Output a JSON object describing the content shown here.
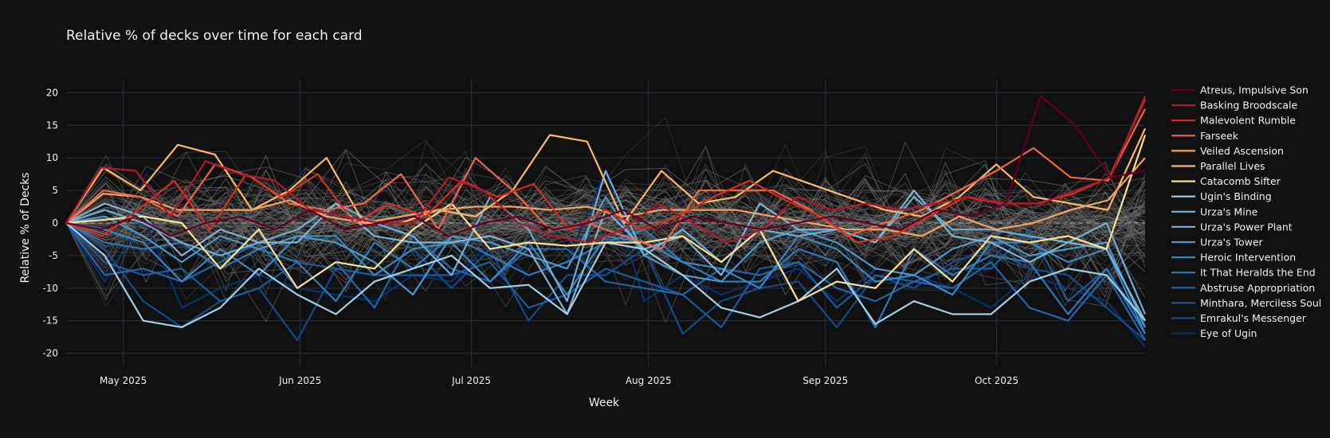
{
  "chart_data": {
    "type": "line",
    "title": "Relative  % of decks over time for each card",
    "xlabel": "Week",
    "ylabel": "Relative % of Decks",
    "ylim": [
      -22,
      22
    ],
    "grid": true,
    "legend": "right",
    "x_start": "2025-04-21",
    "x_step_days": 7,
    "x_ticks": [
      {
        "label": "May 2025",
        "day": 10
      },
      {
        "label": "Jun 2025",
        "day": 41
      },
      {
        "label": "Jul 2025",
        "day": 71
      },
      {
        "label": "Aug 2025",
        "day": 102
      },
      {
        "label": "Sep 2025",
        "day": 133
      },
      {
        "label": "Oct 2025",
        "day": 163
      }
    ],
    "y_ticks": [
      20,
      15,
      10,
      5,
      0,
      -5,
      -10,
      -15,
      -20
    ],
    "background_series_note": "many unlabeled grey cards",
    "background_seed": 7,
    "background_count": 90,
    "series": [
      {
        "name": "Atreus, Impulsive Son",
        "color": "#67001f",
        "values": [
          0,
          -1,
          1,
          -2,
          0,
          1,
          -1,
          2,
          -1,
          0,
          1,
          -2,
          0,
          1,
          -1,
          0,
          2,
          -1,
          1,
          0,
          -1,
          0,
          1,
          0,
          -1,
          2,
          1,
          3,
          19.5,
          15,
          7,
          8
        ]
      },
      {
        "name": "Basking Broodscale",
        "color": "#b2182b",
        "values": [
          0,
          8.5,
          8,
          1,
          9.5,
          7.5,
          6.5,
          2,
          1,
          0,
          0,
          7,
          5,
          0,
          -2,
          -3,
          -1,
          3,
          0,
          -3,
          -1,
          4,
          2,
          3,
          2,
          3,
          4,
          3,
          3,
          5,
          7,
          19.5
        ]
      },
      {
        "name": "Malevolent Rumble",
        "color": "#d6301d",
        "values": [
          0,
          -2,
          2,
          6.5,
          -1,
          7.5,
          4,
          7.5,
          0,
          3,
          1,
          6.5,
          4,
          6,
          -1,
          2,
          -1,
          1,
          4,
          6.5,
          3.5,
          1,
          -3,
          -2,
          1,
          4,
          3,
          3,
          4.5,
          7,
          19
        ]
      },
      {
        "name": "Farseek",
        "color": "#ef6548",
        "values": [
          0,
          5,
          4,
          1,
          9,
          7,
          3,
          2,
          3,
          7.5,
          -1,
          10,
          5,
          -1,
          0,
          -2,
          -4,
          5,
          5,
          5,
          2,
          -2,
          0,
          2,
          5,
          8,
          11.5,
          7,
          6.5,
          17.5
        ]
      },
      {
        "name": "Veiled Ascension",
        "color": "#f4a261",
        "values": [
          0,
          4.5,
          4,
          2,
          2,
          2,
          3.5,
          1,
          0,
          1,
          2,
          2.5,
          2.5,
          2,
          2.5,
          1,
          2,
          2,
          2,
          1,
          0,
          -1,
          -1,
          -2,
          1,
          -1,
          0,
          2,
          3.5,
          10
        ]
      },
      {
        "name": "Parallel Lives",
        "color": "#fdb863",
        "values": [
          0,
          8.5,
          5,
          12,
          10.5,
          2,
          5,
          10,
          0,
          0,
          2,
          1,
          5,
          13.5,
          12.5,
          0,
          8,
          3,
          4,
          8,
          6,
          4,
          2,
          1,
          4,
          9,
          4,
          3,
          2,
          14.5
        ]
      },
      {
        "name": "Catacomb Sifter",
        "color": "#fee090",
        "values": [
          0,
          0.5,
          1,
          0,
          -7,
          -1,
          -10,
          -6,
          -7,
          -1,
          3,
          -4,
          -3,
          -3.5,
          -3,
          -3,
          -2,
          -6,
          -1,
          -12,
          -9,
          -10,
          -4,
          -9,
          -2,
          -3,
          -2,
          -4,
          13.5
        ]
      },
      {
        "name": "Ugin's Binding",
        "color": "#a6cee3",
        "values": [
          0,
          -5,
          -15,
          -16,
          -13,
          -7,
          -11,
          -14,
          -9,
          -7,
          -5,
          -10,
          -9.5,
          -14,
          -3,
          -4,
          -8,
          -13,
          -14.5,
          -12,
          -7,
          -15.5,
          -12,
          -14,
          -14,
          -9,
          -7,
          -8,
          -15
        ]
      },
      {
        "name": "Urza's Mine",
        "color": "#7fb3d8",
        "values": [
          0,
          3,
          1,
          -5,
          -1,
          -3,
          -3,
          3,
          -2,
          -3,
          -3,
          -2,
          -4,
          -14,
          2,
          -4,
          -2,
          -8,
          3,
          -1,
          -1,
          -3,
          5,
          -2,
          -3,
          -6,
          -3,
          -4,
          -15
        ]
      },
      {
        "name": "Urza's Power Plant",
        "color": "#6aaed6",
        "values": [
          0,
          2,
          0,
          -3,
          -5,
          -3,
          -1,
          3,
          0,
          -2,
          -8,
          4,
          -1,
          -12,
          8,
          -5,
          -1,
          -6,
          -1,
          -2,
          -1,
          -3,
          4,
          -1,
          -1,
          -2,
          -3,
          0,
          -14
        ]
      },
      {
        "name": "Urza's Tower",
        "color": "#4a98c9",
        "values": [
          0,
          1,
          -2,
          -6,
          -2,
          -4,
          -2,
          -3,
          -6,
          -11,
          -2,
          -3,
          -5,
          -7,
          4,
          -5,
          -8,
          -9,
          -3,
          -1,
          -3,
          -7,
          -8,
          -4,
          -2,
          -5,
          -4,
          -3,
          -16
        ]
      },
      {
        "name": "Heroic Intervention",
        "color": "#3a86c0",
        "values": [
          0,
          -1,
          -3,
          -9,
          -4,
          -8,
          -2,
          -2,
          -8,
          -4,
          -3,
          -9,
          -3,
          -11,
          -2,
          -3,
          -6,
          -7,
          -10,
          -2,
          -4,
          -9,
          -8,
          -11,
          -3,
          -3,
          -6,
          -4,
          -17
        ]
      },
      {
        "name": "It That Heralds the End",
        "color": "#2f78b8",
        "values": [
          0,
          -3,
          -4,
          -3,
          -7,
          -4,
          -6,
          -12,
          -3,
          -7,
          -2,
          -5,
          -8,
          -6,
          -3,
          -1,
          -6,
          -9,
          -9,
          -4,
          -6,
          -16,
          -4,
          -8,
          -5,
          -6,
          -14,
          -7,
          -17
        ]
      },
      {
        "name": "Abstruse Appropriation",
        "color": "#2166ac",
        "values": [
          0,
          -8,
          -7,
          -9,
          -6,
          -3,
          -10,
          -6,
          -13,
          -2,
          -7,
          -9,
          -4,
          -4,
          -9,
          -10,
          -11,
          -7,
          -8,
          -6,
          -10,
          -12,
          -9,
          -10,
          -6,
          -13,
          -15,
          -8,
          -18
        ]
      },
      {
        "name": "Minthara, Merciless Soul",
        "color": "#1a5a9e",
        "values": [
          0,
          -6,
          -8,
          -7,
          -12,
          -10,
          -6,
          -7,
          -8,
          -8,
          -8,
          -6,
          -13,
          -11,
          -7,
          -9,
          -11,
          -16,
          -7,
          -6,
          -13,
          -8,
          -9,
          -7,
          -7,
          -1,
          -12,
          -7,
          -16
        ]
      },
      {
        "name": "Emrakul's Messenger",
        "color": "#134a8c",
        "values": [
          0,
          -4,
          -12,
          -16,
          -12,
          -10,
          -18,
          -7,
          -8,
          -4,
          -10,
          -4,
          -15,
          -8,
          -8,
          -4,
          -17,
          -12,
          -10,
          -9,
          -16,
          -8,
          -10,
          -6,
          -4,
          -7,
          -8,
          -13,
          -18
        ]
      },
      {
        "name": "Eye of Ugin",
        "color": "#08306b",
        "values": [
          0,
          -9,
          1,
          -13,
          -10,
          -8,
          -10,
          -11,
          -12,
          -8,
          -9,
          -3,
          -8,
          -6,
          8,
          -12,
          -8,
          -11,
          -9,
          -7,
          -12,
          -7,
          -8,
          -10,
          -13,
          -8,
          -10,
          -12,
          -19
        ]
      }
    ]
  }
}
